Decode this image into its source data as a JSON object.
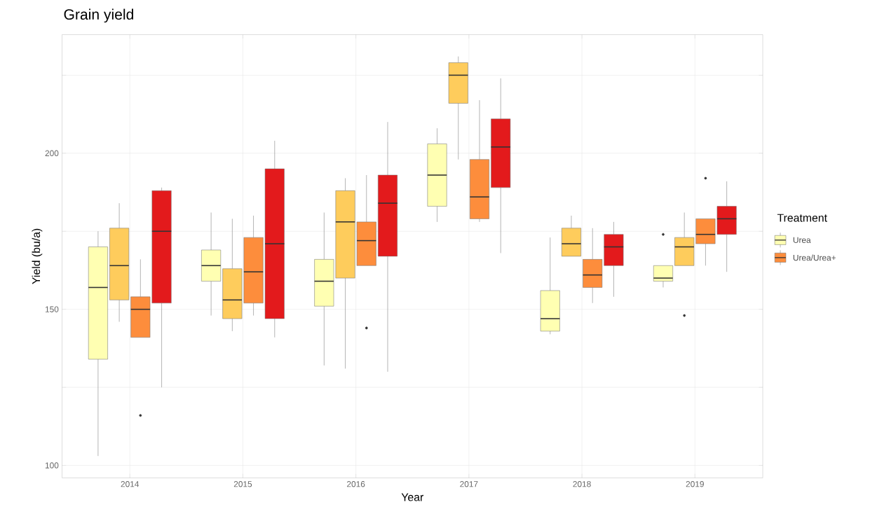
{
  "chart_data": {
    "type": "box",
    "title": "Grain yield",
    "xlabel": "Year",
    "ylabel": "Yield (bu/a)",
    "legend_title": "Treatment",
    "legend": "right",
    "grid": true,
    "categories": [
      "2014",
      "2015",
      "2016",
      "2017",
      "2018",
      "2019"
    ],
    "ylim": [
      96,
      238
    ],
    "yticks": [
      100,
      {
        "value": 125,
        "label": null
      },
      150,
      {
        "value": 175,
        "label": null
      },
      200,
      {
        "value": 225,
        "label": null
      }
    ],
    "series": [
      {
        "name": "Urea",
        "color": "#ffffb2",
        "boxes": [
          {
            "low": 103,
            "q1": 134,
            "median": 157,
            "q3": 170,
            "high": 175
          },
          {
            "low": 148,
            "q1": 159,
            "median": 164,
            "q3": 169,
            "high": 181
          },
          {
            "low": 132,
            "q1": 151,
            "median": 159,
            "q3": 166,
            "high": 181
          },
          {
            "low": 178,
            "q1": 183,
            "median": 193,
            "q3": 203,
            "high": 208
          },
          {
            "low": 142,
            "q1": 143,
            "median": 147,
            "q3": 156,
            "high": 173
          },
          {
            "low": 157,
            "q1": 159,
            "median": 160,
            "q3": 164,
            "high": 164,
            "outliers": [
              174
            ]
          }
        ]
      },
      {
        "color": "#fecc5c",
        "boxes": [
          {
            "low": 146,
            "q1": 153,
            "median": 164,
            "q3": 176,
            "high": 184
          },
          {
            "low": 143,
            "q1": 147,
            "median": 153,
            "q3": 163,
            "high": 179
          },
          {
            "low": 131,
            "q1": 160,
            "median": 178,
            "q3": 188,
            "high": 192
          },
          {
            "low": 198,
            "q1": 216,
            "median": 225,
            "q3": 229,
            "high": 231
          },
          {
            "low": 167,
            "q1": 167,
            "median": 171,
            "q3": 176,
            "high": 180
          },
          {
            "low": 164,
            "q1": 164,
            "median": 170,
            "q3": 173,
            "high": 181,
            "outliers": [
              148
            ]
          }
        ]
      },
      {
        "name": "Urea/Urea+",
        "color": "#fd8d3c",
        "boxes": [
          {
            "low": 141,
            "q1": 141,
            "median": 150,
            "q3": 154,
            "high": 166,
            "outliers": [
              116
            ]
          },
          {
            "low": 148,
            "q1": 152,
            "median": 162,
            "q3": 173,
            "high": 180
          },
          {
            "low": 164,
            "q1": 164,
            "median": 172,
            "q3": 178,
            "high": 193,
            "outliers": [
              144
            ]
          },
          {
            "low": 178,
            "q1": 179,
            "median": 186,
            "q3": 198,
            "high": 217
          },
          {
            "low": 152,
            "q1": 157,
            "median": 161,
            "q3": 166,
            "high": 176
          },
          {
            "low": 164,
            "q1": 171,
            "median": 174,
            "q3": 179,
            "high": 179,
            "outliers": [
              192
            ]
          }
        ]
      },
      {
        "color": "#e31a1c",
        "boxes": [
          {
            "low": 125,
            "q1": 152,
            "median": 175,
            "q3": 188,
            "high": 189
          },
          {
            "low": 141,
            "q1": 147,
            "median": 171,
            "q3": 195,
            "high": 204
          },
          {
            "low": 130,
            "q1": 167,
            "median": 184,
            "q3": 193,
            "high": 210
          },
          {
            "low": 168,
            "q1": 189,
            "median": 202,
            "q3": 211,
            "high": 224
          },
          {
            "low": 154,
            "q1": 164,
            "median": 170,
            "q3": 174,
            "high": 178
          },
          {
            "low": 162,
            "q1": 174,
            "median": 179,
            "q3": 183,
            "high": 191
          }
        ]
      }
    ]
  }
}
